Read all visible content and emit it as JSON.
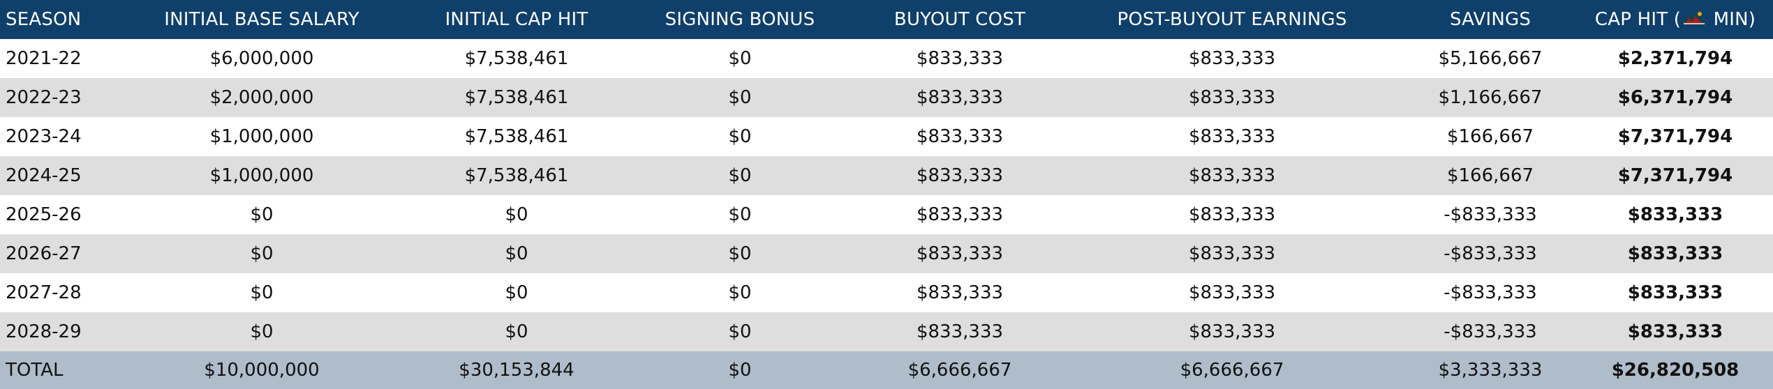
{
  "headers": {
    "season": "SEASON",
    "initial_base_salary": "INITIAL BASE SALARY",
    "initial_cap_hit": "INITIAL CAP HIT",
    "signing_bonus": "SIGNING BONUS",
    "buyout_cost": "BUYOUT COST",
    "post_buyout_earnings": "POST-BUYOUT EARNINGS",
    "savings": "SAVINGS",
    "cap_hit_prefix": "CAP HIT (",
    "cap_hit_team_icon": "minnesota-wild-logo-icon",
    "cap_hit_suffix": " MIN)"
  },
  "rows": [
    {
      "season": "2021-22",
      "base": "$6,000,000",
      "cap": "$7,538,461",
      "bonus": "$0",
      "buyout": "$833,333",
      "post": "$833,333",
      "savings": "$5,166,667",
      "caphit": "$2,371,794"
    },
    {
      "season": "2022-23",
      "base": "$2,000,000",
      "cap": "$7,538,461",
      "bonus": "$0",
      "buyout": "$833,333",
      "post": "$833,333",
      "savings": "$1,166,667",
      "caphit": "$6,371,794"
    },
    {
      "season": "2023-24",
      "base": "$1,000,000",
      "cap": "$7,538,461",
      "bonus": "$0",
      "buyout": "$833,333",
      "post": "$833,333",
      "savings": "$166,667",
      "caphit": "$7,371,794"
    },
    {
      "season": "2024-25",
      "base": "$1,000,000",
      "cap": "$7,538,461",
      "bonus": "$0",
      "buyout": "$833,333",
      "post": "$833,333",
      "savings": "$166,667",
      "caphit": "$7,371,794"
    },
    {
      "season": "2025-26",
      "base": "$0",
      "cap": "$0",
      "bonus": "$0",
      "buyout": "$833,333",
      "post": "$833,333",
      "savings": "-$833,333",
      "caphit": "$833,333"
    },
    {
      "season": "2026-27",
      "base": "$0",
      "cap": "$0",
      "bonus": "$0",
      "buyout": "$833,333",
      "post": "$833,333",
      "savings": "-$833,333",
      "caphit": "$833,333"
    },
    {
      "season": "2027-28",
      "base": "$0",
      "cap": "$0",
      "bonus": "$0",
      "buyout": "$833,333",
      "post": "$833,333",
      "savings": "-$833,333",
      "caphit": "$833,333"
    },
    {
      "season": "2028-29",
      "base": "$0",
      "cap": "$0",
      "bonus": "$0",
      "buyout": "$833,333",
      "post": "$833,333",
      "savings": "-$833,333",
      "caphit": "$833,333"
    }
  ],
  "total": {
    "season": "TOTAL",
    "base": "$10,000,000",
    "cap": "$30,153,844",
    "bonus": "$0",
    "buyout": "$6,666,667",
    "post": "$6,666,667",
    "savings": "$3,333,333",
    "caphit": "$26,820,508"
  },
  "colors": {
    "header_bg": "#0f3f6b",
    "row_alt_bg": "#dedede",
    "total_bg": "#aebdc9"
  }
}
